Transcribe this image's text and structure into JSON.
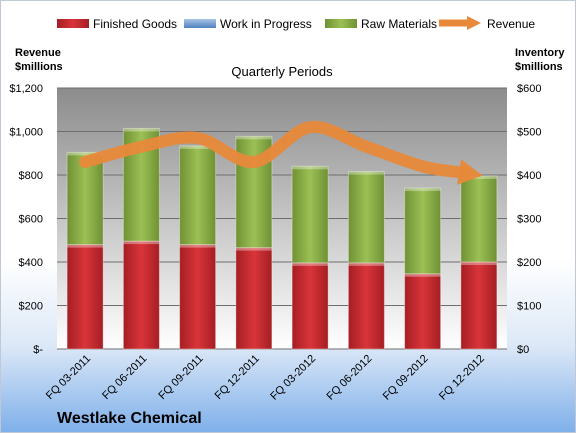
{
  "chart_data": {
    "type": "bar",
    "stacked": true,
    "title": "Westlake Chemical",
    "subtitle": "Quarterly Periods",
    "categories": [
      "FQ 03-2011",
      "FQ 06-2011",
      "FQ 09-2011",
      "FQ 12-2011",
      "FQ 03-2012",
      "FQ 06-2012",
      "FQ 09-2012",
      "FQ 12-2012"
    ],
    "series": [
      {
        "name": "Finished Goods",
        "axis": "right",
        "color": "#c0282d",
        "values": [
          240,
          248,
          240,
          233,
          198,
          198,
          173,
          200
        ]
      },
      {
        "name": "Work in Progress",
        "axis": "right",
        "color": "#4f81bd",
        "values": [
          0,
          0,
          0,
          0,
          0,
          0,
          0,
          0
        ]
      },
      {
        "name": "Raw Materials",
        "axis": "right",
        "color": "#8fb04a",
        "values": [
          212,
          259,
          227,
          256,
          222,
          210,
          197,
          198
        ]
      },
      {
        "name": "Revenue",
        "type": "line",
        "axis": "left",
        "color": "#e8893a",
        "values": [
          860,
          930,
          970,
          860,
          1020,
          930,
          840,
          800
        ]
      }
    ],
    "left_axis": {
      "label": "Revenue\n$millions",
      "range": [
        0,
        1200
      ],
      "ticks": [
        0,
        200,
        400,
        600,
        800,
        1000,
        1200
      ],
      "tick_labels": [
        "$-",
        "$200",
        "$400",
        "$600",
        "$800",
        "$1,000",
        "$1,200"
      ]
    },
    "right_axis": {
      "label": "Inventory\n$millions",
      "range": [
        0,
        600
      ],
      "ticks": [
        0,
        100,
        200,
        300,
        400,
        500,
        600
      ],
      "tick_labels": [
        "$0",
        "$100",
        "$200",
        "$300",
        "$400",
        "$500",
        "$600"
      ]
    },
    "legend": "top",
    "grid": true
  }
}
